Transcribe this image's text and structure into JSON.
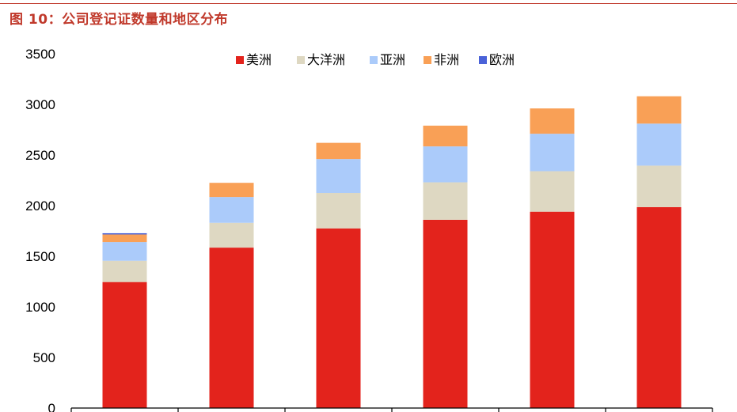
{
  "figure_title": "图 10：公司登记证数量和地区分布",
  "chart_data": {
    "type": "bar",
    "stacked": true,
    "title": "",
    "xlabel": "",
    "ylabel": "",
    "categories": [
      "",
      "",
      "",
      "",
      "",
      ""
    ],
    "ylim": [
      0,
      3500
    ],
    "yticks": [
      0,
      500,
      1000,
      1500,
      2000,
      2500,
      3000,
      3500
    ],
    "grid": false,
    "legend_position": "top-center",
    "series": [
      {
        "name": "美洲",
        "color": "#e3231c",
        "values": [
          1245,
          1585,
          1775,
          1860,
          1940,
          1985
        ]
      },
      {
        "name": "大洋洲",
        "color": "#ded8c2",
        "values": [
          210,
          245,
          350,
          370,
          400,
          410
        ]
      },
      {
        "name": "亚洲",
        "color": "#abcbfa",
        "values": [
          185,
          255,
          335,
          355,
          370,
          415
        ]
      },
      {
        "name": "非洲",
        "color": "#f9a056",
        "values": [
          75,
          140,
          160,
          205,
          250,
          270
        ]
      },
      {
        "name": "欧洲",
        "color": "#4a62d8",
        "values": [
          12,
          0,
          0,
          0,
          0,
          0
        ]
      }
    ]
  }
}
